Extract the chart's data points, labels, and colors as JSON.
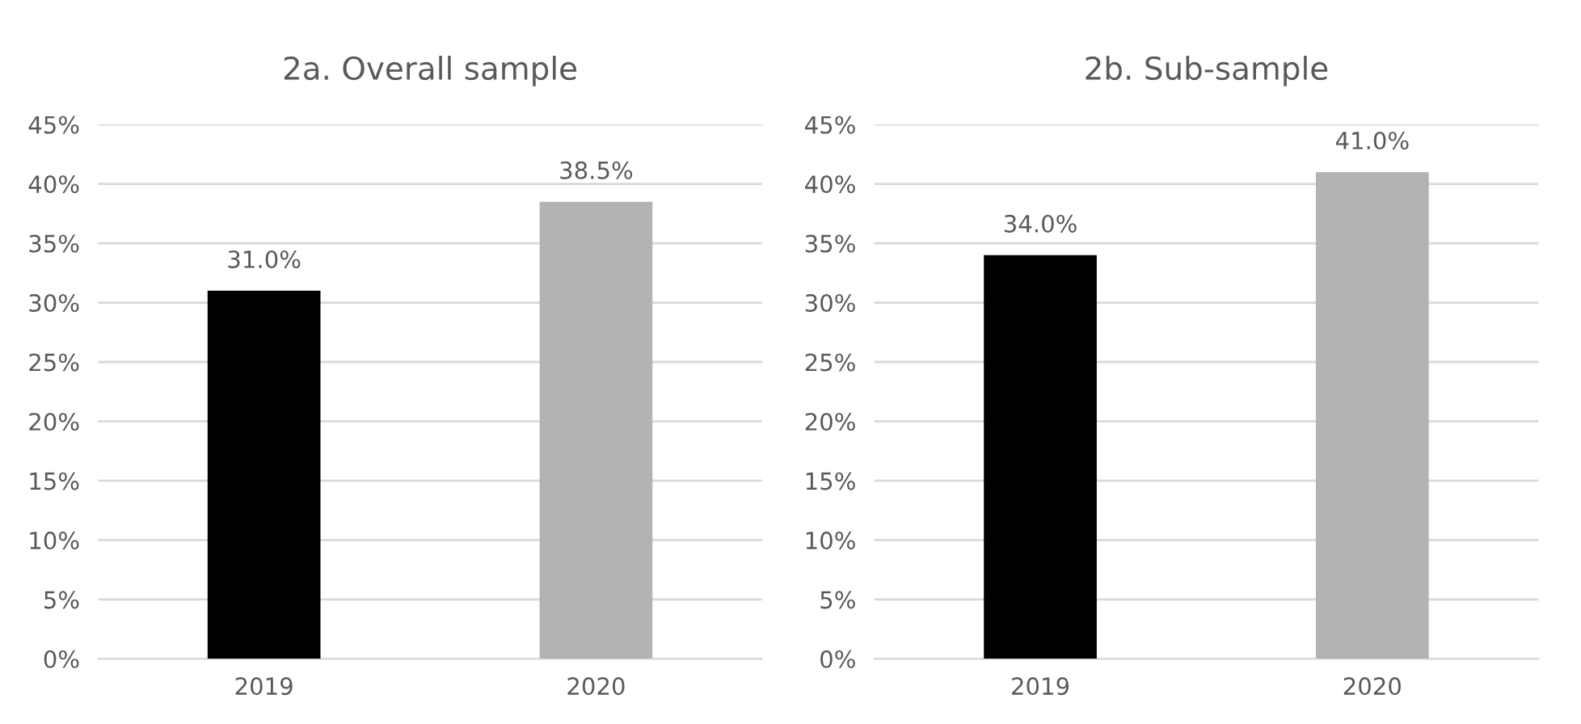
{
  "chart_data": [
    {
      "type": "bar",
      "title": "2a. Overall sample",
      "categories": [
        "2019",
        "2020"
      ],
      "values": [
        31.0,
        38.5
      ],
      "colors": [
        "#000000",
        "#b3b3b3"
      ],
      "value_labels": [
        "31.0%",
        "38.5%"
      ],
      "ylim": [
        0,
        45
      ],
      "yticks": [
        {
          "value": 0,
          "label": "0%"
        },
        {
          "value": 5,
          "label": "5%"
        },
        {
          "value": 10,
          "label": "10%"
        },
        {
          "value": 15,
          "label": "15%"
        },
        {
          "value": 20,
          "label": "20%"
        },
        {
          "value": 25,
          "label": "25%"
        },
        {
          "value": 30,
          "label": "30%"
        },
        {
          "value": 35,
          "label": "35%"
        },
        {
          "value": 40,
          "label": "40%"
        },
        {
          "value": 45,
          "label": "45%"
        }
      ],
      "grid": "y"
    },
    {
      "type": "bar",
      "title": "2b. Sub-sample",
      "categories": [
        "2019",
        "2020"
      ],
      "values": [
        34.0,
        41.0
      ],
      "colors": [
        "#000000",
        "#b3b3b3"
      ],
      "value_labels": [
        "34.0%",
        "41.0%"
      ],
      "ylim": [
        0,
        45
      ],
      "yticks": [
        {
          "value": 0,
          "label": "0%"
        },
        {
          "value": 5,
          "label": "5%"
        },
        {
          "value": 10,
          "label": "10%"
        },
        {
          "value": 15,
          "label": "15%"
        },
        {
          "value": 20,
          "label": "20%"
        },
        {
          "value": 25,
          "label": "25%"
        },
        {
          "value": 30,
          "label": "30%"
        },
        {
          "value": 35,
          "label": "35%"
        },
        {
          "value": 40,
          "label": "40%"
        },
        {
          "value": 45,
          "label": "45%"
        }
      ],
      "grid": "y"
    }
  ]
}
